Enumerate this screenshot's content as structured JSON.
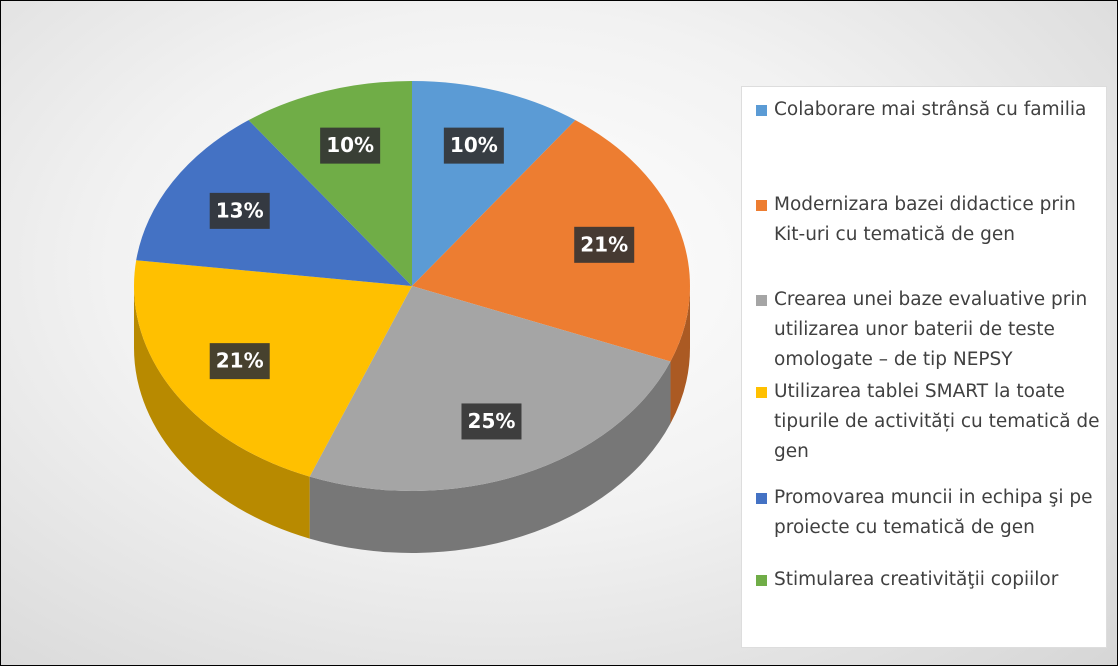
{
  "chart_data": {
    "type": "pie",
    "categories": [
      "Colaborare mai strânsă cu familia",
      "Modernizara bazei didactice prin Kit-uri cu tematică de gen",
      "Crearea unei baze evaluative prin utilizarea unor baterii de teste omologate – de tip NEPSY",
      "Utilizarea tablei SMART la toate tipurile de activități cu tematică de gen",
      "Promovarea muncii in echipa şi pe proiecte cu tematică de gen",
      "Stimularea creativităţii copiilor"
    ],
    "values": [
      10,
      21,
      25,
      21,
      13,
      10
    ],
    "value_labels": [
      "10%",
      "21%",
      "25%",
      "21%",
      "13%",
      "10%"
    ],
    "colors": [
      "#5b9bd5",
      "#ed7d31",
      "#a5a5a5",
      "#ffc000",
      "#4472c4",
      "#70ad47"
    ],
    "legend": "right"
  }
}
